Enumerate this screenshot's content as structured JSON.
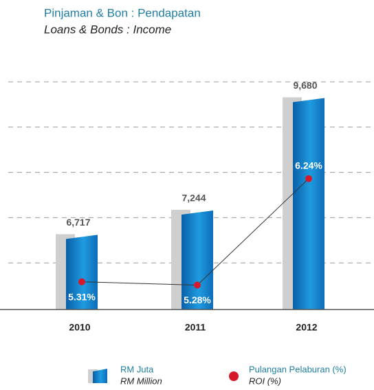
{
  "chart_data": {
    "type": "bar",
    "title": "Pinjaman & Bon : Pendapatan",
    "subtitle": "Loans & Bonds : Income",
    "categories": [
      "2010",
      "2011",
      "2012"
    ],
    "series": [
      {
        "name": "RM Juta",
        "name_en": "RM Million",
        "type": "bar",
        "color": "#1a8fd6",
        "values": [
          6717,
          7244,
          9680
        ],
        "value_labels": [
          "6,717",
          "7,244",
          "9,680"
        ]
      },
      {
        "name": "Pulangan Pelaburan (%)",
        "name_en": "ROI (%)",
        "type": "line",
        "axis": "y2",
        "color": "#d7182a",
        "values": [
          5.31,
          5.28,
          6.24
        ],
        "value_labels": [
          "5.31%",
          "5.28%",
          "6.24%"
        ]
      }
    ],
    "ylim": [
      5100,
      10000
    ],
    "y2lim": [
      5.06,
      7.1
    ],
    "grid": true
  }
}
